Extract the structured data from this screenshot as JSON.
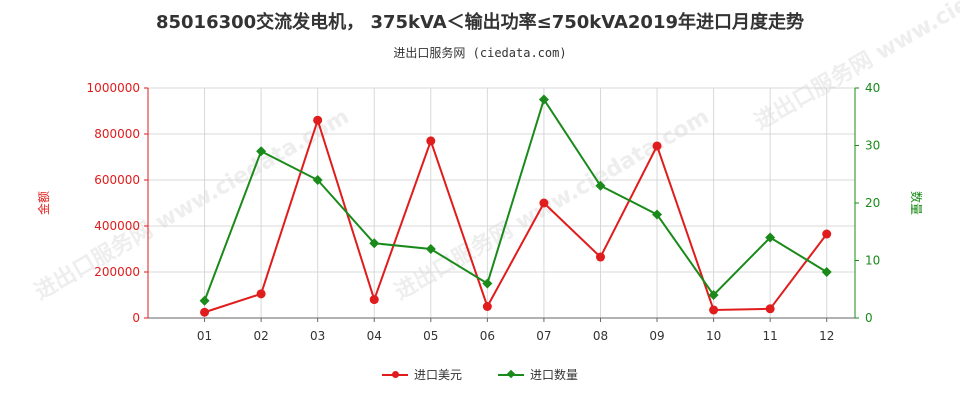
{
  "title": "85016300交流发电机， 375kVA＜输出功率≤750kVA2019年进口月度走势",
  "subtitle": "进出口服务网 (ciedata.com)",
  "watermark": "进出口服务网 www.ciedata.com",
  "colors": {
    "amount": "#e01c1c",
    "quantity": "#1a8a1a",
    "grid": "#d8d8d8"
  },
  "chart_data": {
    "type": "line",
    "categories": [
      "01",
      "02",
      "03",
      "04",
      "05",
      "06",
      "07",
      "08",
      "09",
      "10",
      "11",
      "12"
    ],
    "y_left": {
      "label": "金额",
      "ylim": [
        0,
        1000000
      ],
      "ticks": [
        0,
        200000,
        400000,
        600000,
        800000,
        1000000
      ]
    },
    "y_right": {
      "label": "数量",
      "ylim": [
        0,
        40
      ],
      "ticks": [
        0,
        10,
        20,
        30,
        40
      ]
    },
    "grid": true,
    "legend_position": "bottom",
    "series": [
      {
        "name": "进口美元",
        "axis": "left",
        "marker": "circle",
        "values": [
          25000,
          105000,
          860000,
          80000,
          770000,
          50000,
          500000,
          265000,
          748000,
          35000,
          40000,
          365000
        ]
      },
      {
        "name": "进口数量",
        "axis": "right",
        "marker": "diamond",
        "values": [
          3,
          29,
          24,
          13,
          12,
          6,
          38,
          23,
          18,
          4,
          14,
          8
        ]
      }
    ]
  }
}
